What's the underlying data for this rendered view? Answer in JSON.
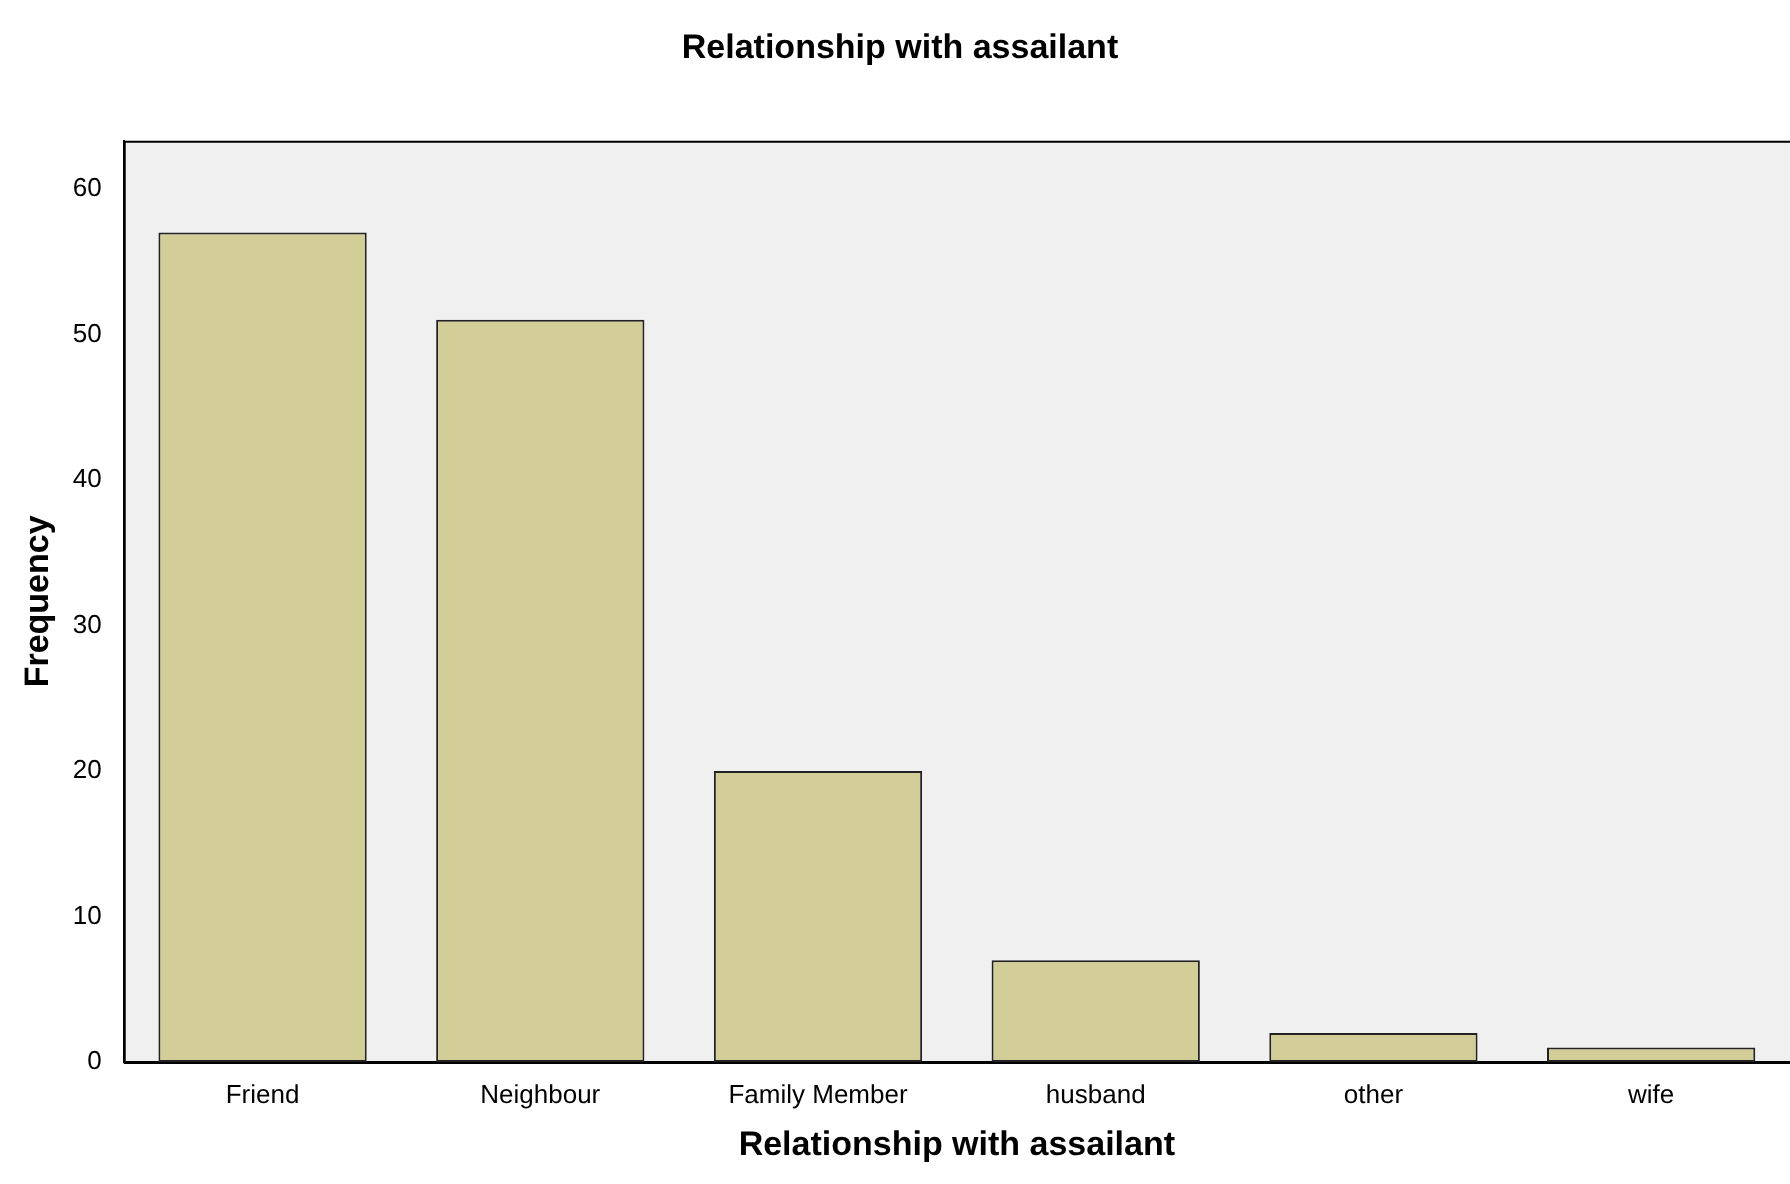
{
  "chart_data": {
    "type": "bar",
    "title": "Relationship with assailant",
    "xlabel": "Relationship with assailant",
    "ylabel": "Frequency",
    "categories": [
      "Friend",
      "Neighbour",
      "Family Member",
      "husband",
      "other",
      "wife"
    ],
    "values": [
      57,
      51,
      20,
      7,
      2,
      1
    ],
    "color": "#d3ce97",
    "ylim": [
      0,
      63.3
    ],
    "yticks": [
      0,
      10,
      20,
      30,
      40,
      50,
      60
    ],
    "grid": false,
    "legend": false
  }
}
